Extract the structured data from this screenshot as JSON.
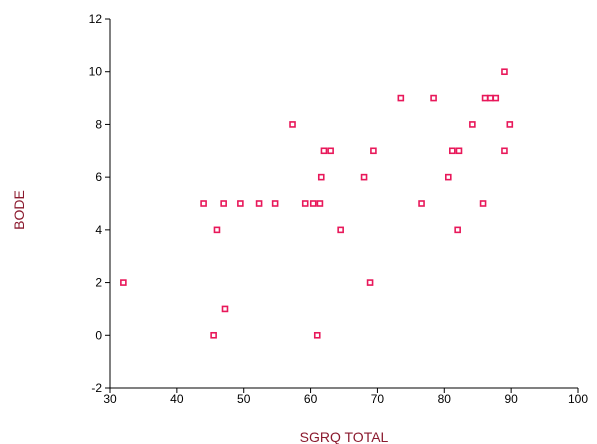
{
  "colors": {
    "marker": "#e8185a",
    "axis_title": "#8b1a2e",
    "axis": "#000000"
  },
  "chart_data": {
    "type": "scatter",
    "title": "",
    "xlabel": "SGRQ TOTAL",
    "ylabel": "BODE",
    "xlim": [
      30,
      100
    ],
    "ylim": [
      -2,
      12
    ],
    "xticks": [
      30,
      40,
      50,
      60,
      70,
      80,
      90,
      100
    ],
    "yticks": [
      -2,
      0,
      2,
      4,
      6,
      8,
      10,
      12
    ],
    "xtick_labels": [
      "30",
      "40",
      "50",
      "60",
      "70",
      "80",
      "90",
      "100"
    ],
    "ytick_labels": [
      "-2",
      "0",
      "2",
      "4",
      "6",
      "8",
      "10",
      "12"
    ],
    "grid": false,
    "marker": "square-open",
    "points": [
      {
        "x": 32.0,
        "y": 2
      },
      {
        "x": 44.0,
        "y": 5
      },
      {
        "x": 45.5,
        "y": 0
      },
      {
        "x": 46.0,
        "y": 4
      },
      {
        "x": 47.0,
        "y": 5
      },
      {
        "x": 47.2,
        "y": 1
      },
      {
        "x": 49.5,
        "y": 5
      },
      {
        "x": 52.3,
        "y": 5
      },
      {
        "x": 54.7,
        "y": 5
      },
      {
        "x": 57.3,
        "y": 8
      },
      {
        "x": 59.2,
        "y": 5
      },
      {
        "x": 60.4,
        "y": 5
      },
      {
        "x": 61.0,
        "y": 0
      },
      {
        "x": 61.4,
        "y": 5
      },
      {
        "x": 61.6,
        "y": 6
      },
      {
        "x": 62.0,
        "y": 7
      },
      {
        "x": 63.0,
        "y": 7
      },
      {
        "x": 64.5,
        "y": 4
      },
      {
        "x": 68.0,
        "y": 6
      },
      {
        "x": 68.9,
        "y": 2
      },
      {
        "x": 69.4,
        "y": 7
      },
      {
        "x": 73.5,
        "y": 9
      },
      {
        "x": 76.6,
        "y": 5
      },
      {
        "x": 78.4,
        "y": 9
      },
      {
        "x": 80.6,
        "y": 6
      },
      {
        "x": 81.2,
        "y": 7
      },
      {
        "x": 82.0,
        "y": 4
      },
      {
        "x": 82.2,
        "y": 7
      },
      {
        "x": 84.2,
        "y": 8
      },
      {
        "x": 85.8,
        "y": 5
      },
      {
        "x": 86.1,
        "y": 9
      },
      {
        "x": 86.9,
        "y": 9
      },
      {
        "x": 87.7,
        "y": 9
      },
      {
        "x": 89.0,
        "y": 7
      },
      {
        "x": 89.0,
        "y": 10
      },
      {
        "x": 89.8,
        "y": 8
      }
    ]
  }
}
